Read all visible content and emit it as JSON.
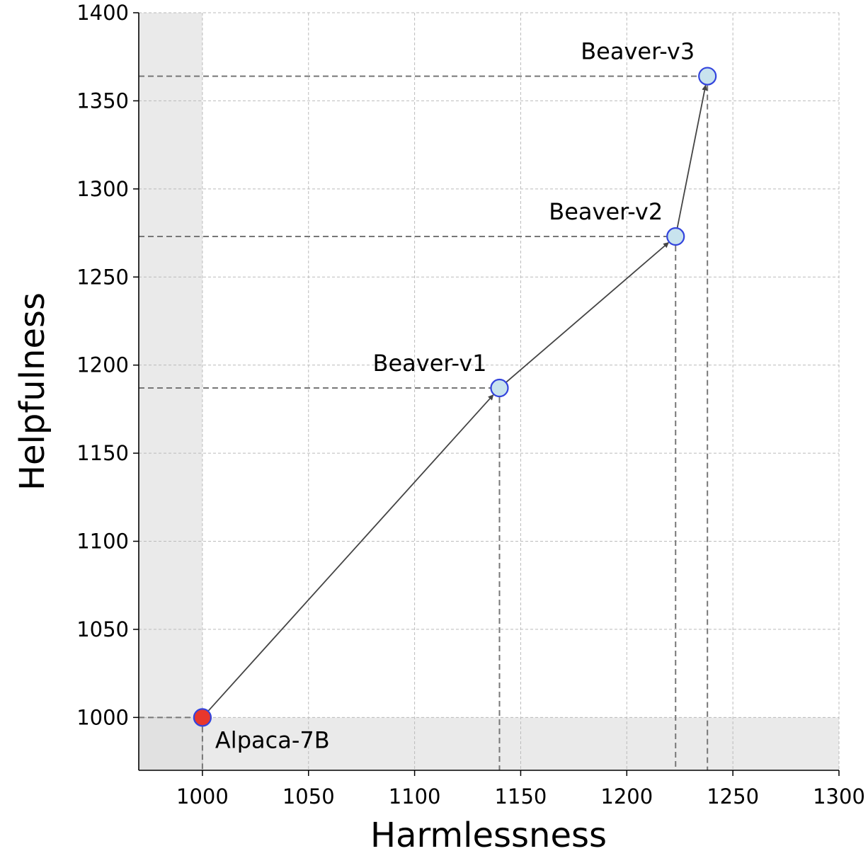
{
  "chart_data": {
    "type": "scatter",
    "xlabel": "Harmlessness",
    "ylabel": "Helpfulness",
    "xlim": [
      970,
      1300
    ],
    "ylim": [
      970,
      1400
    ],
    "xticks": [
      1000,
      1050,
      1100,
      1150,
      1200,
      1250,
      1300
    ],
    "yticks": [
      1000,
      1050,
      1100,
      1150,
      1200,
      1250,
      1300,
      1350,
      1400
    ],
    "grid": true,
    "points": [
      {
        "label": "Alpaca-7B",
        "x": 1000,
        "y": 1000,
        "color": "#e8372c"
      },
      {
        "label": "Beaver-v1",
        "x": 1140,
        "y": 1187,
        "color": "#c8e3ee"
      },
      {
        "label": "Beaver-v2",
        "x": 1223,
        "y": 1273,
        "color": "#c8e3ee"
      },
      {
        "label": "Beaver-v3",
        "x": 1238,
        "y": 1364,
        "color": "#c8e3ee"
      }
    ],
    "shaded_region_below": {
      "x": 1000,
      "y": 1000,
      "color": "#d9d9d9"
    },
    "marker_edge_color": "#3344dd",
    "arrow_color": "#444444"
  }
}
